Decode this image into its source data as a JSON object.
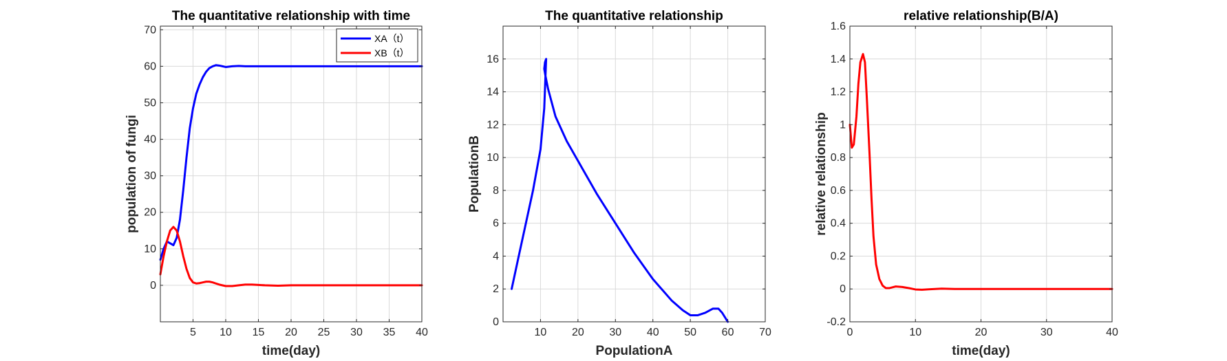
{
  "chart_data": [
    {
      "type": "line",
      "title": "The quantitative relationship with time",
      "xlabel": "time(day)",
      "ylabel": "population of fungi",
      "xlim": [
        0,
        40
      ],
      "ylim": [
        -10,
        71
      ],
      "xticks": [
        5,
        10,
        15,
        20,
        25,
        30,
        35,
        40
      ],
      "yticks": [
        0,
        10,
        20,
        30,
        40,
        50,
        60,
        70
      ],
      "grid": true,
      "legend": "top-right",
      "series": [
        {
          "name": "XA（t）",
          "color": "#0000ff",
          "x": [
            0,
            0.5,
            1,
            1.5,
            2,
            2.5,
            3,
            3.5,
            4,
            4.5,
            5,
            5.5,
            6,
            6.5,
            7,
            7.5,
            8,
            8.5,
            9,
            9.5,
            10,
            11,
            12,
            13,
            14,
            16,
            18,
            20,
            25,
            30,
            35,
            40
          ],
          "y": [
            7,
            10,
            12,
            11.5,
            11,
            13,
            18,
            26,
            35,
            43,
            48.5,
            52.5,
            55,
            57,
            58.5,
            59.5,
            60,
            60.3,
            60.2,
            60,
            59.8,
            60,
            60.1,
            60,
            60,
            60,
            60,
            60,
            60,
            60,
            60,
            60
          ]
        },
        {
          "name": "XB（t）",
          "color": "#ff0000",
          "x": [
            0,
            0.5,
            1,
            1.5,
            2,
            2.5,
            3,
            3.5,
            4,
            4.5,
            5,
            5.5,
            6,
            6.5,
            7,
            7.5,
            8,
            8.5,
            9,
            10,
            11,
            12,
            13,
            14,
            15,
            16,
            18,
            20,
            25,
            30,
            35,
            40
          ],
          "y": [
            3,
            8,
            12,
            15,
            16,
            15,
            12,
            8,
            4.5,
            2,
            0.8,
            0.5,
            0.6,
            0.8,
            1,
            1,
            0.8,
            0.5,
            0.2,
            -0.2,
            -0.2,
            0,
            0.2,
            0.2,
            0.1,
            0,
            -0.1,
            0,
            0,
            0,
            0,
            0
          ]
        }
      ]
    },
    {
      "type": "line",
      "title": "The quantitative relationship",
      "xlabel": "PopulationA",
      "ylabel": "PopulationB",
      "xlim": [
        0,
        70
      ],
      "ylim": [
        0,
        18
      ],
      "xticks": [
        10,
        20,
        30,
        40,
        50,
        60,
        70
      ],
      "yticks": [
        0,
        2,
        4,
        6,
        8,
        10,
        12,
        14,
        16
      ],
      "grid": true,
      "series": [
        {
          "name": "",
          "color": "#0000ff",
          "x": [
            2.3,
            4,
            6,
            8,
            10,
            11,
            11.5,
            11.2,
            11,
            11.3,
            12,
            14,
            17,
            20,
            25,
            30,
            35,
            40,
            45,
            48,
            50,
            52,
            54,
            56,
            57.5,
            58.5,
            60
          ],
          "y": [
            2,
            3.8,
            5.9,
            8,
            10.5,
            13,
            16,
            15.8,
            15.4,
            15,
            14.2,
            12.5,
            11,
            9.8,
            7.8,
            6,
            4.2,
            2.6,
            1.3,
            0.7,
            0.4,
            0.4,
            0.55,
            0.8,
            0.8,
            0.55,
            0
          ]
        }
      ]
    },
    {
      "type": "line",
      "title": "relative relationship(B/A)",
      "xlabel": "time(day)",
      "ylabel": "relative relationship",
      "xlim": [
        0,
        40
      ],
      "ylim": [
        -0.2,
        1.6
      ],
      "xticks": [
        0,
        10,
        20,
        30,
        40
      ],
      "yticks": [
        -0.2,
        0,
        0.2,
        0.4,
        0.6,
        0.8,
        1,
        1.2,
        1.4,
        1.6
      ],
      "grid": true,
      "series": [
        {
          "name": "",
          "color": "#ff0000",
          "x": [
            0,
            0.3,
            0.6,
            1,
            1.3,
            1.6,
            2,
            2.3,
            2.6,
            3,
            3.3,
            3.6,
            4,
            4.5,
            5,
            5.5,
            6,
            6.5,
            7,
            8,
            9,
            10,
            11,
            12,
            14,
            16,
            20,
            25,
            30,
            40
          ],
          "y": [
            1.0,
            0.86,
            0.88,
            1.05,
            1.25,
            1.38,
            1.43,
            1.38,
            1.15,
            0.82,
            0.55,
            0.32,
            0.15,
            0.06,
            0.02,
            0.005,
            0.005,
            0.01,
            0.015,
            0.012,
            0.005,
            -0.003,
            -0.005,
            -0.002,
            0.002,
            0,
            0,
            0,
            0,
            0
          ]
        }
      ]
    }
  ]
}
